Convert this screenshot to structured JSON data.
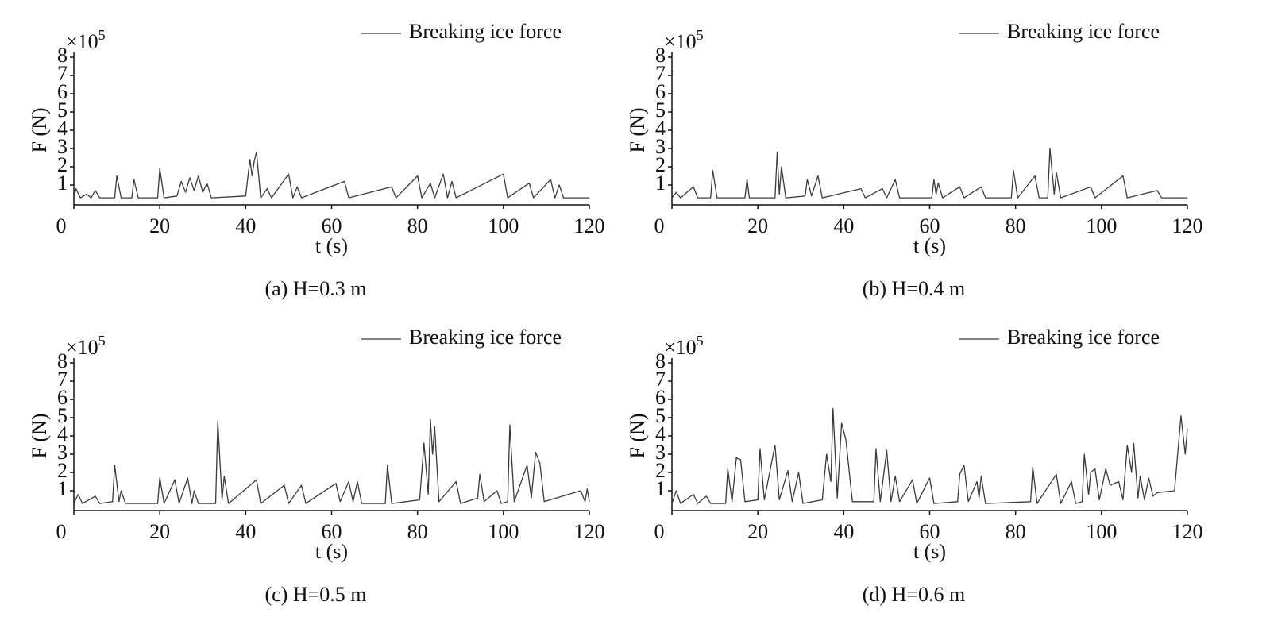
{
  "chart_data": [
    {
      "type": "line",
      "caption": "(a) H=0.3 m",
      "ylabel": "F (N)",
      "xlabel": "t (s)",
      "y_multiplier": "×10",
      "y_multiplier_exponent": "5",
      "xlim": [
        0,
        120
      ],
      "ylim": [
        0,
        8
      ],
      "xticks": [
        0,
        20,
        40,
        60,
        80,
        100,
        120
      ],
      "yticks": [
        1,
        2,
        3,
        4,
        5,
        6,
        7,
        8
      ],
      "x": [
        0,
        0.5,
        1.5,
        3,
        4,
        5,
        6,
        9.5,
        10,
        11,
        13.5,
        14,
        15,
        19.5,
        20,
        21,
        24,
        25,
        26,
        27,
        28,
        29,
        30,
        31,
        32,
        40,
        41,
        41.5,
        42,
        42.5,
        43.5,
        45,
        46,
        50,
        51,
        52,
        53,
        63,
        64,
        74,
        75,
        80,
        81,
        83,
        84,
        86,
        87,
        88,
        89,
        100,
        101,
        106,
        107,
        111,
        112,
        113,
        114,
        120
      ],
      "series": [
        {
          "name": "Breaking ice force",
          "color": "#3a3a3a",
          "values": [
            0.3,
            0.8,
            0.3,
            0.5,
            0.3,
            0.7,
            0.3,
            0.3,
            1.5,
            0.3,
            0.3,
            1.3,
            0.3,
            0.3,
            1.9,
            0.3,
            0.4,
            1.2,
            0.6,
            1.4,
            0.7,
            1.5,
            0.6,
            1.1,
            0.3,
            0.4,
            2.4,
            1.5,
            2.3,
            2.8,
            0.3,
            0.8,
            0.3,
            1.6,
            0.3,
            0.9,
            0.3,
            1.2,
            0.3,
            0.9,
            0.3,
            1.5,
            0.3,
            1.1,
            0.3,
            1.6,
            0.3,
            1.2,
            0.3,
            1.6,
            0.3,
            1.1,
            0.3,
            1.3,
            0.3,
            1.0,
            0.3,
            0.3
          ]
        }
      ]
    },
    {
      "type": "line",
      "caption": "(b) H=0.4 m",
      "ylabel": "F (N)",
      "xlabel": "t (s)",
      "y_multiplier": "×10",
      "y_multiplier_exponent": "5",
      "xlim": [
        0,
        120
      ],
      "ylim": [
        0,
        8
      ],
      "xticks": [
        0,
        20,
        40,
        60,
        80,
        100,
        120
      ],
      "yticks": [
        1,
        2,
        3,
        4,
        5,
        6,
        7,
        8
      ],
      "x": [
        0,
        1,
        2,
        5,
        6,
        9,
        9.5,
        10.5,
        17,
        17.5,
        18,
        24,
        24.5,
        25,
        25.5,
        26.5,
        31,
        31.5,
        32.5,
        34,
        35,
        44,
        45,
        49,
        50,
        52,
        53,
        60.5,
        61,
        61.5,
        62,
        63,
        67,
        68,
        72,
        73,
        79,
        79.5,
        80.5,
        84.5,
        85.5,
        87.5,
        88,
        89,
        89.5,
        90.5,
        97.5,
        98.5,
        105,
        106,
        113,
        114,
        120
      ],
      "series": [
        {
          "name": "Breaking ice force",
          "color": "#3a3a3a",
          "values": [
            0.3,
            0.6,
            0.3,
            0.9,
            0.3,
            0.3,
            1.8,
            0.3,
            0.3,
            1.3,
            0.3,
            0.3,
            2.8,
            0.5,
            2.0,
            0.3,
            0.4,
            1.3,
            0.4,
            1.5,
            0.3,
            0.8,
            0.3,
            0.8,
            0.3,
            1.3,
            0.3,
            0.3,
            1.3,
            0.5,
            1.1,
            0.3,
            0.9,
            0.3,
            0.9,
            0.3,
            0.3,
            1.8,
            0.3,
            1.5,
            0.3,
            0.3,
            3.0,
            0.5,
            1.7,
            0.3,
            0.9,
            0.3,
            1.5,
            0.3,
            0.7,
            0.3,
            0.3
          ]
        }
      ]
    },
    {
      "type": "line",
      "caption": "(c) H=0.5 m",
      "ylabel": "F (N)",
      "xlabel": "t (s)",
      "y_multiplier": "×10",
      "y_multiplier_exponent": "5",
      "xlim": [
        0,
        120
      ],
      "ylim": [
        0,
        8
      ],
      "xticks": [
        0,
        20,
        40,
        60,
        80,
        100,
        120
      ],
      "yticks": [
        1,
        2,
        3,
        4,
        5,
        6,
        7,
        8
      ],
      "x": [
        0,
        1,
        2,
        5,
        6,
        9,
        9.5,
        10.5,
        11,
        12,
        19.5,
        20,
        21,
        23.5,
        24.5,
        26.5,
        27.5,
        28,
        29,
        33,
        33.5,
        34.5,
        35,
        36,
        42.5,
        43.5,
        49,
        50,
        53,
        54,
        61,
        62,
        64,
        65,
        66,
        67,
        72.5,
        73,
        74,
        80.5,
        81.5,
        82.5,
        83,
        83.5,
        84,
        85,
        89,
        90,
        94,
        94.5,
        95.5,
        98.5,
        99.5,
        101,
        101.5,
        102.5,
        105.5,
        106.5,
        107.5,
        108.5,
        109.5,
        118,
        119,
        119.5,
        120
      ],
      "series": [
        {
          "name": "Breaking ice force",
          "color": "#3a3a3a",
          "values": [
            0.3,
            0.8,
            0.3,
            0.7,
            0.3,
            0.4,
            2.4,
            0.4,
            1.0,
            0.3,
            0.3,
            1.7,
            0.3,
            1.6,
            0.3,
            1.7,
            0.3,
            1.0,
            0.3,
            0.3,
            4.8,
            0.5,
            1.8,
            0.3,
            1.6,
            0.3,
            1.3,
            0.3,
            1.3,
            0.3,
            1.4,
            0.4,
            1.5,
            0.4,
            1.5,
            0.3,
            0.3,
            2.4,
            0.3,
            0.5,
            3.6,
            0.8,
            4.9,
            3.0,
            4.5,
            0.4,
            1.5,
            0.3,
            0.6,
            1.9,
            0.4,
            1.0,
            0.3,
            0.4,
            4.6,
            0.4,
            2.4,
            0.6,
            3.1,
            2.5,
            0.4,
            1.0,
            0.4,
            1.1,
            0.4
          ]
        }
      ]
    },
    {
      "type": "line",
      "caption": "(d) H=0.6 m",
      "ylabel": "F (N)",
      "xlabel": "t (s)",
      "y_multiplier": "×10",
      "y_multiplier_exponent": "5",
      "xlim": [
        0,
        120
      ],
      "ylim": [
        0,
        8
      ],
      "xticks": [
        0,
        20,
        40,
        60,
        80,
        100,
        120
      ],
      "yticks": [
        1,
        2,
        3,
        4,
        5,
        6,
        7,
        8
      ],
      "x": [
        0,
        1,
        2,
        5,
        6,
        8,
        9,
        12.5,
        13,
        14,
        15,
        16,
        17,
        20,
        20.5,
        21.5,
        24,
        25,
        27,
        28,
        29.5,
        30.5,
        35,
        36,
        37,
        37.5,
        38.5,
        39.5,
        40.5,
        42,
        47,
        47.5,
        48.5,
        50,
        51,
        52,
        53,
        56,
        57,
        60,
        61,
        66.5,
        67,
        68,
        69,
        71,
        71.5,
        72,
        73,
        83.5,
        84,
        85,
        89.5,
        90.5,
        93,
        94,
        95.5,
        96,
        97,
        97.5,
        98.5,
        99.5,
        101,
        102,
        104,
        105,
        106,
        107,
        107.5,
        108.5,
        109,
        110,
        111,
        112,
        113,
        117,
        118.5,
        119.5,
        120
      ],
      "series": [
        {
          "name": "Breaking ice force",
          "color": "#3a3a3a",
          "values": [
            0.3,
            1.0,
            0.3,
            0.8,
            0.3,
            0.7,
            0.3,
            0.3,
            2.2,
            0.4,
            2.8,
            2.7,
            0.4,
            0.5,
            3.3,
            0.5,
            3.5,
            0.5,
            2.1,
            0.4,
            2.0,
            0.3,
            0.5,
            3.0,
            1.5,
            5.5,
            0.6,
            4.7,
            3.8,
            0.4,
            0.4,
            3.3,
            0.4,
            3.2,
            0.4,
            1.8,
            0.4,
            1.6,
            0.3,
            1.7,
            0.3,
            0.4,
            1.9,
            2.4,
            0.4,
            1.5,
            0.6,
            1.8,
            0.3,
            0.4,
            2.3,
            0.3,
            1.9,
            0.3,
            1.5,
            0.3,
            0.4,
            3.0,
            0.8,
            2.0,
            2.2,
            0.5,
            2.2,
            1.3,
            1.5,
            0.5,
            3.5,
            2.0,
            3.6,
            0.6,
            1.8,
            0.5,
            1.7,
            0.7,
            0.9,
            1.0,
            5.1,
            3.0,
            4.4
          ]
        }
      ]
    }
  ]
}
